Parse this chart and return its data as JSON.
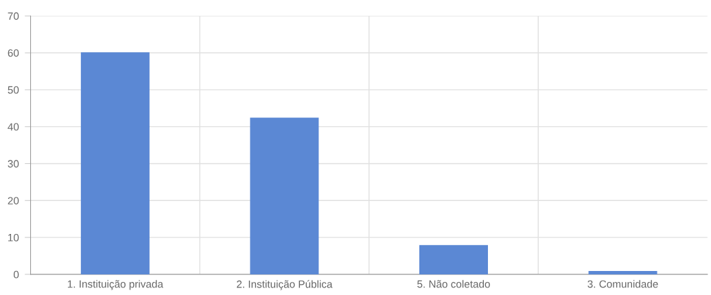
{
  "chart_data": {
    "type": "bar",
    "categories": [
      "1. Instituição privada",
      "2. Instituição Pública",
      "5. Não coletado",
      "3. Comunidade"
    ],
    "values": [
      60,
      42.3,
      7.8,
      0.8
    ],
    "color": "#5b88d4",
    "ylim": [
      0,
      70
    ],
    "yticks": [
      0,
      10,
      20,
      30,
      40,
      50,
      60,
      70
    ],
    "grid": true,
    "legend": false
  }
}
